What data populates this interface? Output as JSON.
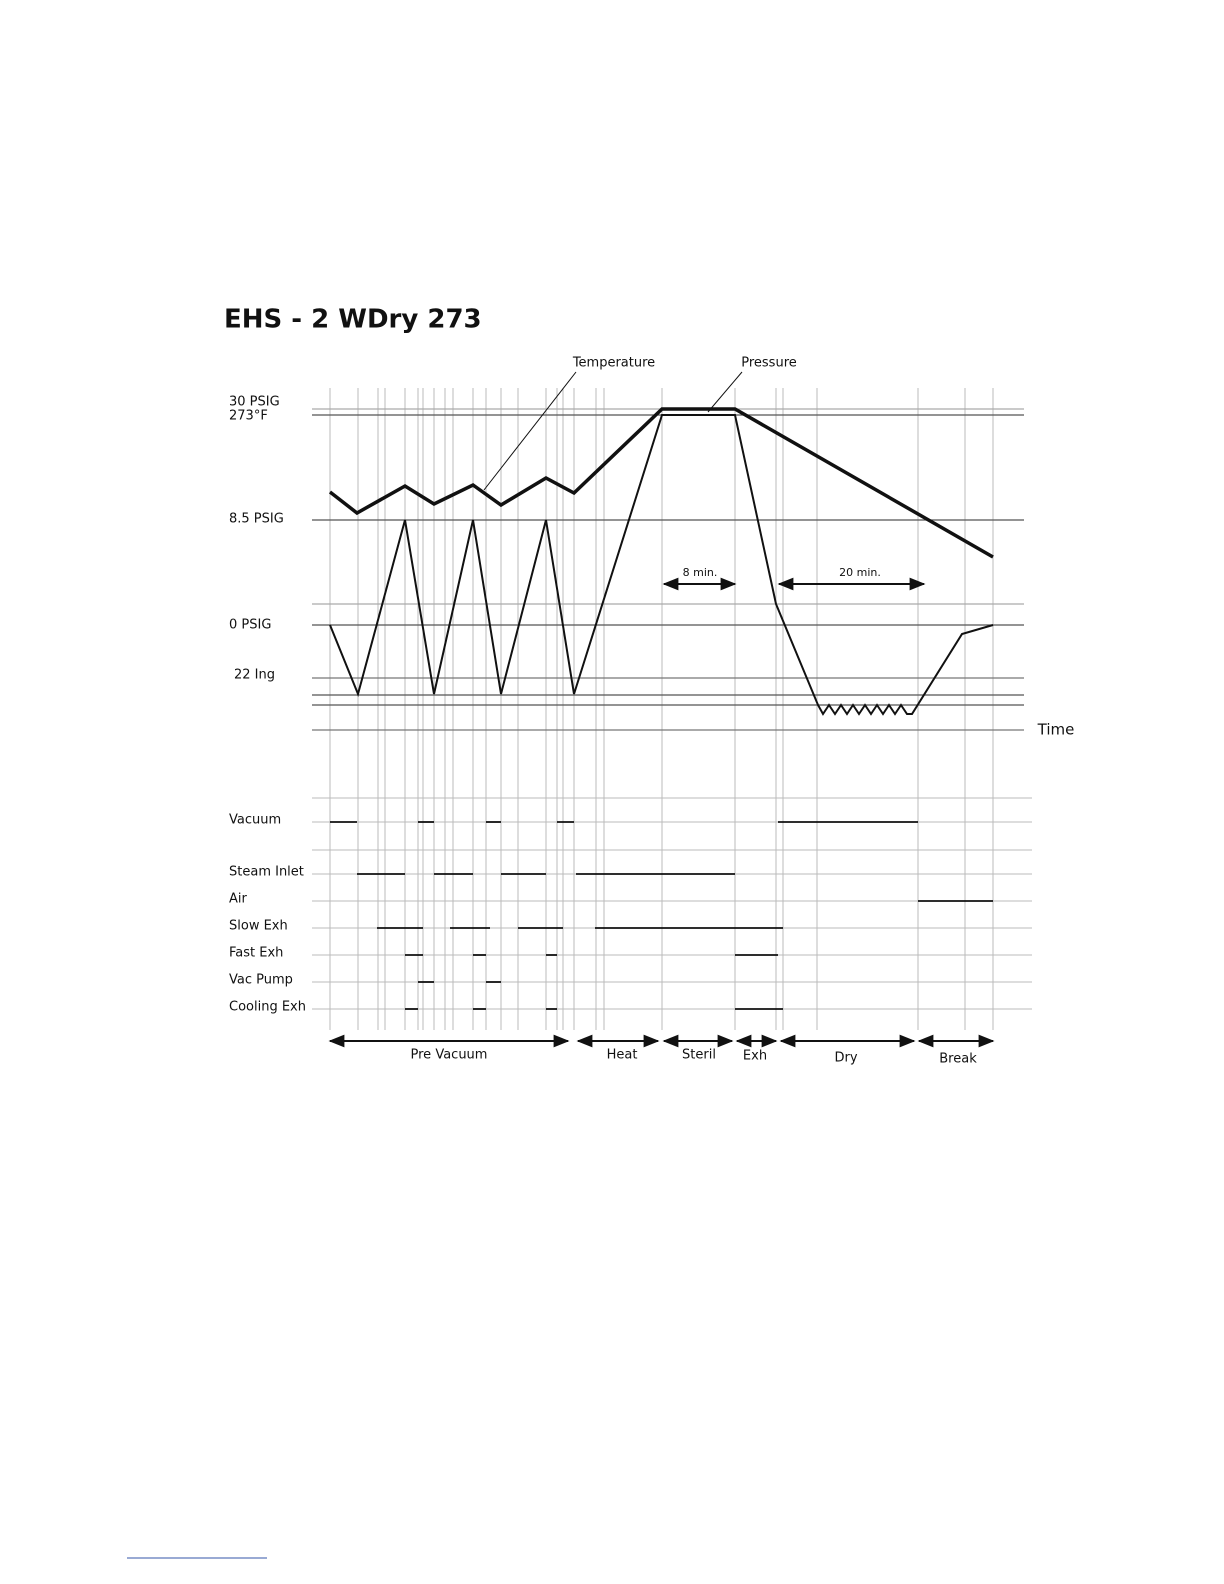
{
  "title": "EHS - 2 WDry 273",
  "annotations": {
    "temperature": "Temperature",
    "pressure": "Pressure",
    "time": "Time",
    "sterilize_duration": "8 min.",
    "dry_duration": "20 min."
  },
  "levels": [
    "30 PSIG",
    "273°F",
    "8.5 PSIG",
    "0 PSIG",
    "22 Ing"
  ],
  "signals": [
    "Vacuum",
    "Steam Inlet",
    "Air",
    "Slow Exh",
    "Fast Exh",
    "Vac Pump",
    "Cooling Exh"
  ],
  "phases": [
    "Pre Vacuum",
    "Heat",
    "Steril",
    "Exh",
    "Dry",
    "Break"
  ]
}
